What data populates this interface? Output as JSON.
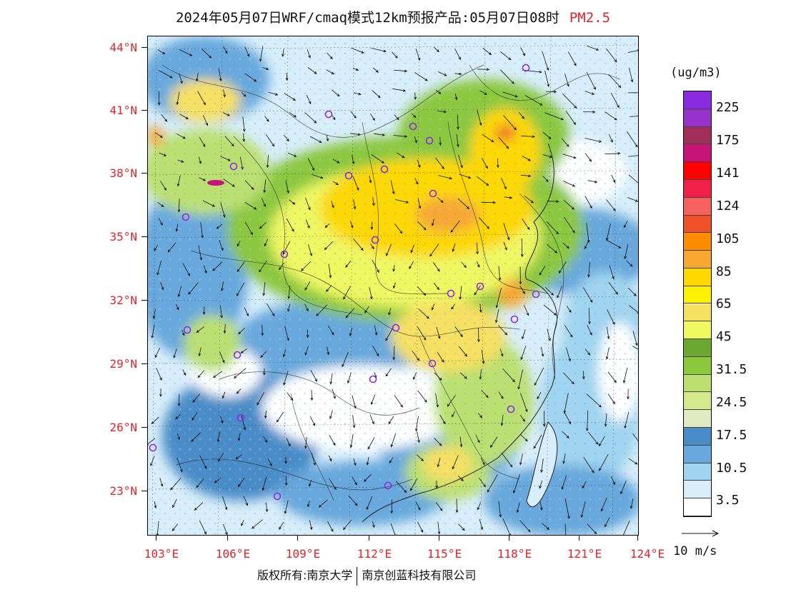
{
  "title": {
    "text": "2024年05月07日WRF/cmaq模式12km预报产品:05月07日08时",
    "species": "PM2.5"
  },
  "axes": {
    "lat_labels": [
      "44°N",
      "41°N",
      "38°N",
      "35°N",
      "32°N",
      "29°N",
      "26°N",
      "23°N"
    ],
    "lon_labels": [
      "103°E",
      "106°E",
      "109°E",
      "112°E",
      "115°E",
      "118°E",
      "121°E",
      "124°E"
    ]
  },
  "legend": {
    "unit": "(ug/m3)",
    "labels": [
      "225",
      "175",
      "141",
      "124",
      "105",
      "85",
      "65",
      "45",
      "31.5",
      "24.5",
      "17.5",
      "10.5",
      "3.5"
    ],
    "colors": [
      "#8a2be2",
      "#9932cc",
      "#a0305a",
      "#c8147a",
      "#ff0000",
      "#f0204a",
      "#f86060",
      "#f05028",
      "#ff8c00",
      "#f8a830",
      "#ffd800",
      "#fff000",
      "#f8e060",
      "#f0f860",
      "#6aa832",
      "#8cc83c",
      "#bce070",
      "#d4e88c",
      "#e0ecc0",
      "#4a8cc8",
      "#68a8dc",
      "#a0d4f0",
      "#d8eefa",
      "#ffffff"
    ],
    "wind_label": "10 m/s"
  },
  "footer": {
    "copyright": "版权所有:南京大学",
    "company": "南京创蓝科技有限公司"
  }
}
